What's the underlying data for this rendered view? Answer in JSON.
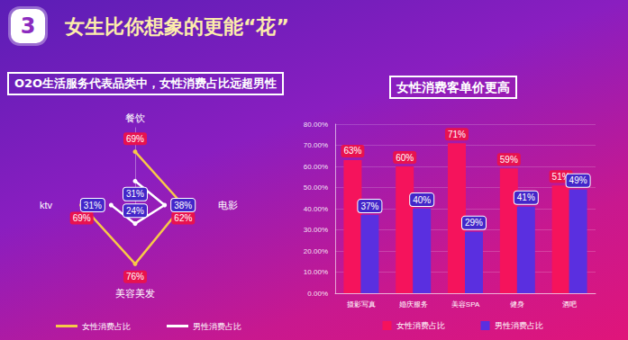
{
  "header": {
    "number": "3",
    "title": "女生比你想象的更能“花”"
  },
  "chart_data": [
    {
      "type": "radar",
      "title": "O2O生活服务代表品类中，女性消费占比远超男性",
      "categories": [
        "餐饮",
        "电影",
        "美容美发",
        "ktv"
      ],
      "series": [
        {
          "name": "女性消费占比",
          "color": "#f7c948",
          "marker": "circle",
          "line_style": "solid",
          "values": [
            69,
            62,
            76,
            69
          ],
          "value_labels": [
            "69%",
            "62%",
            "76%",
            "69%"
          ]
        },
        {
          "name": "男性消费占比",
          "color": "#ffffff",
          "marker": "circle",
          "line_style": "solid",
          "values": [
            31,
            38,
            24,
            31
          ],
          "value_labels": [
            "31%",
            "38%",
            "24%",
            "31%"
          ]
        }
      ],
      "ylim": [
        0,
        100
      ],
      "tick_labels": false,
      "data_labels": true,
      "legend": "bottom"
    },
    {
      "type": "bar",
      "title": "女性消费客单价更高",
      "categories": [
        "摄影写真",
        "婚庆服务",
        "美容SPA",
        "健身",
        "酒吧"
      ],
      "series": [
        {
          "name": "女性消费占比",
          "color": "#f5135c",
          "values": [
            63,
            60,
            71,
            59,
            51
          ],
          "value_labels": [
            "63%",
            "60%",
            "71%",
            "59%",
            "51%"
          ]
        },
        {
          "name": "男性消费占比",
          "color": "#5a2fe0",
          "values": [
            37,
            40,
            29,
            41,
            49
          ],
          "value_labels": [
            "37%",
            "40%",
            "29%",
            "41%",
            "49%"
          ]
        }
      ],
      "ylim": [
        0,
        80
      ],
      "yticks": [
        {
          "value": 0,
          "label": "0.00%"
        },
        {
          "value": 10,
          "label": "10.00%"
        },
        {
          "value": 20,
          "label": "20.00%"
        },
        {
          "value": 30,
          "label": "30.00%"
        },
        {
          "value": 40,
          "label": "40.00%"
        },
        {
          "value": 50,
          "label": "50.00%"
        },
        {
          "value": 60,
          "label": "60.00%"
        },
        {
          "value": 70,
          "label": "70.00%"
        },
        {
          "value": 80,
          "label": "80.00%"
        }
      ],
      "grid": true,
      "data_labels": true,
      "legend": "bottom"
    }
  ]
}
